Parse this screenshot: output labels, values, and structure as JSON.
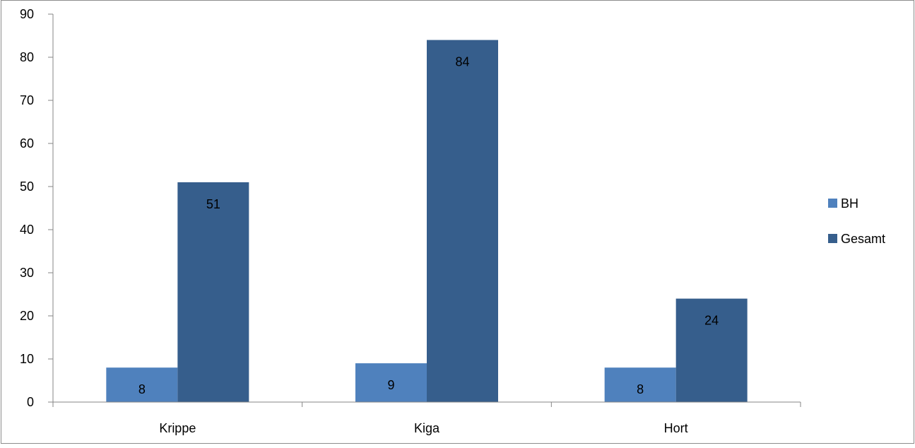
{
  "chart_data": {
    "type": "bar",
    "categories": [
      "Krippe",
      "Kiga",
      "Hort"
    ],
    "series": [
      {
        "name": "BH",
        "values": [
          8,
          9,
          8
        ],
        "color": "#4F81BD"
      },
      {
        "name": "Gesamt",
        "values": [
          51,
          84,
          24
        ],
        "color": "#365E8C"
      }
    ],
    "ylim": [
      0,
      90
    ],
    "yticks": [
      0,
      10,
      20,
      30,
      40,
      50,
      60,
      70,
      80,
      90
    ],
    "grid": false,
    "legend": "right",
    "data_labels": true
  }
}
